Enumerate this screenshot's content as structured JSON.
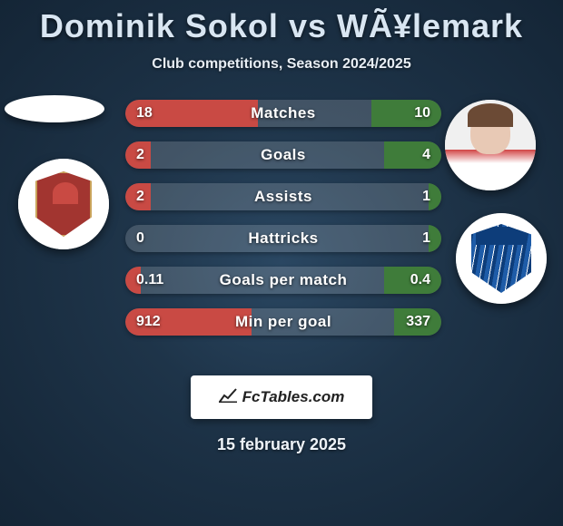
{
  "title": "Dominik Sokol vs WÃ¥lemark",
  "subtitle": "Club competitions, Season 2024/2025",
  "date": "15 february 2025",
  "branding": "FcTables.com",
  "colors": {
    "player1_fill": "#c94a44",
    "player2_fill": "#3f7c3a",
    "bar_bg": "rgba(255,255,255,0.16)"
  },
  "stats": [
    {
      "label": "Matches",
      "left_val": "18",
      "right_val": "10",
      "left_pct": 42,
      "right_pct": 22
    },
    {
      "label": "Goals",
      "left_val": "2",
      "right_val": "4",
      "left_pct": 8,
      "right_pct": 18
    },
    {
      "label": "Assists",
      "left_val": "2",
      "right_val": "1",
      "left_pct": 8,
      "right_pct": 4
    },
    {
      "label": "Hattricks",
      "left_val": "0",
      "right_val": "1",
      "left_pct": 0,
      "right_pct": 4
    },
    {
      "label": "Goals per match",
      "left_val": "0.11",
      "right_val": "0.4",
      "left_pct": 5,
      "right_pct": 18
    },
    {
      "label": "Min per goal",
      "left_val": "912",
      "right_val": "337",
      "left_pct": 40,
      "right_pct": 15
    }
  ]
}
